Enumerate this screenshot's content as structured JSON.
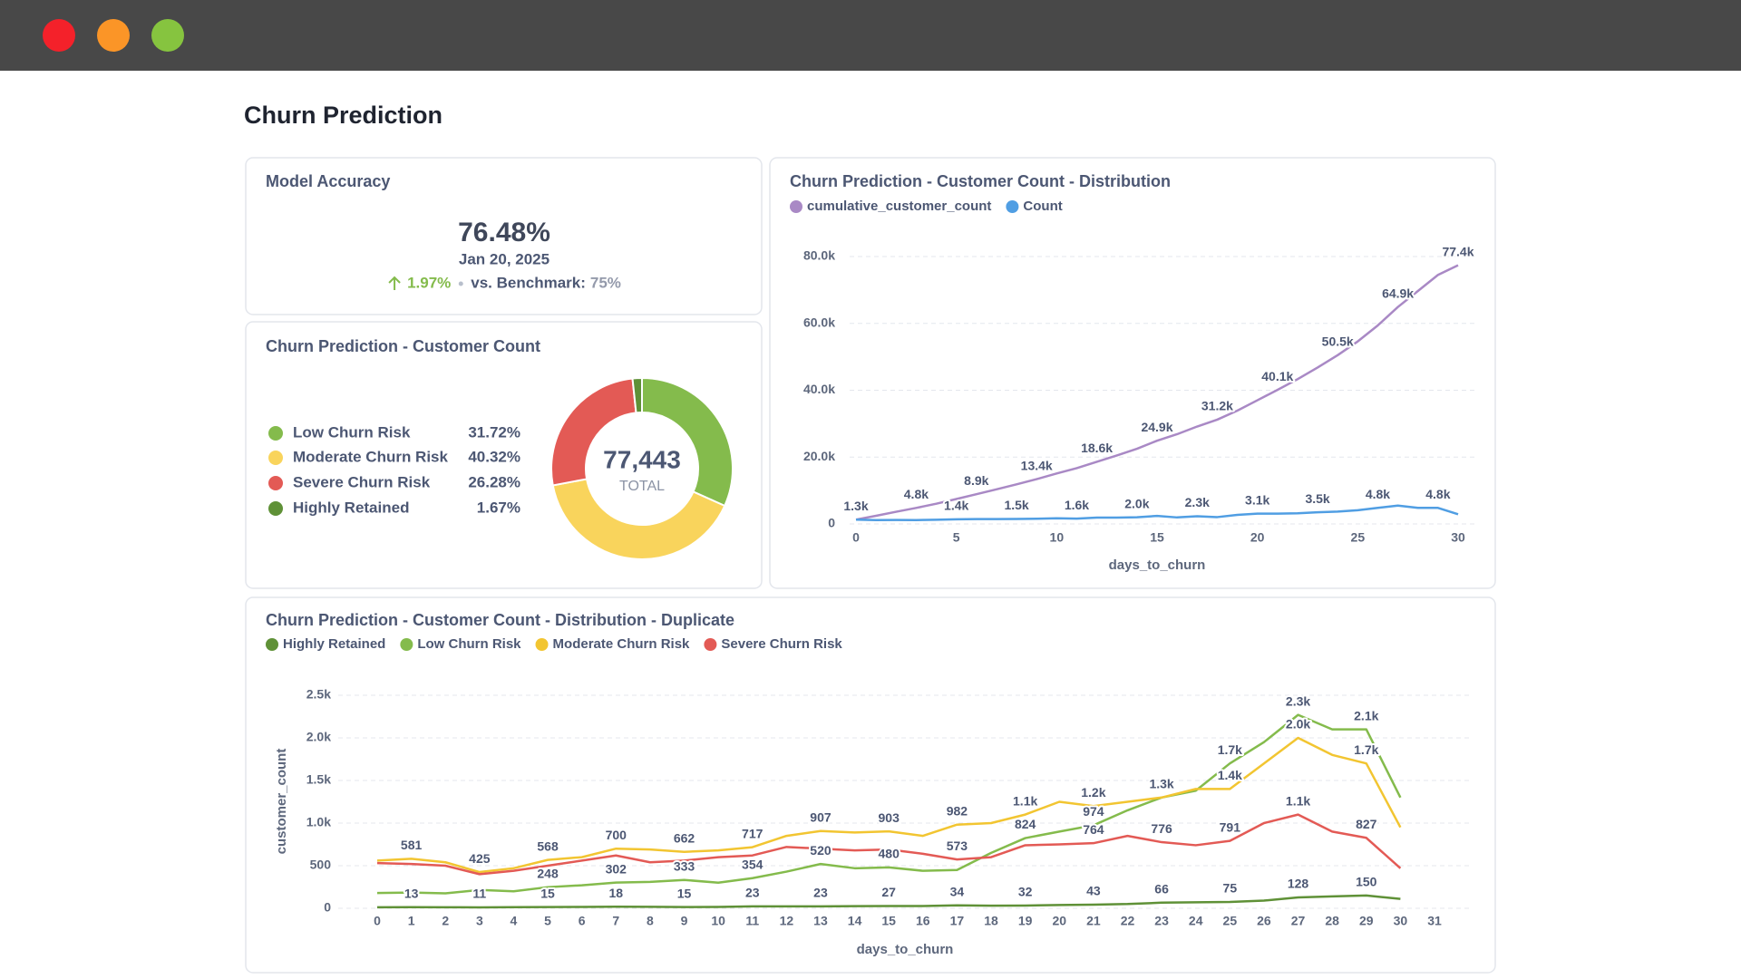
{
  "page": {
    "title": "Churn Prediction"
  },
  "kpi": {
    "title": "Model Accuracy",
    "value": "76.48%",
    "date": "Jan 20, 2025",
    "change": "1.97%",
    "comparison_label": "vs. Benchmark:",
    "benchmark": "75%"
  },
  "chart_data": [
    {
      "type": "pie",
      "title": "Churn Prediction - Customer Count",
      "categories": [
        "Low Churn Risk",
        "Moderate Churn Risk",
        "Severe Churn Risk",
        "Highly Retained"
      ],
      "values": [
        31.72,
        40.32,
        26.28,
        1.67
      ],
      "value_labels": [
        "31.72%",
        "40.32%",
        "26.28%",
        "1.67%"
      ],
      "colors": [
        "#84bb4c",
        "#f9d45c",
        "#e35a55",
        "#5f9137"
      ],
      "total": "77,443",
      "total_label": "TOTAL"
    },
    {
      "type": "line",
      "title": "Churn Prediction - Customer Count - Distribution",
      "x": [
        0,
        1,
        2,
        3,
        4,
        5,
        6,
        7,
        8,
        9,
        10,
        11,
        12,
        13,
        14,
        15,
        16,
        17,
        18,
        19,
        20,
        21,
        22,
        23,
        24,
        25,
        26,
        27,
        28,
        29,
        30
      ],
      "xlim": [
        0,
        30
      ],
      "xticks": [
        0,
        5,
        10,
        15,
        20,
        25,
        30
      ],
      "ylim": [
        0,
        80000
      ],
      "yticks": [
        0,
        {
          "value": 20000,
          "label": "20.0k"
        },
        {
          "value": 40000,
          "label": "40.0k"
        },
        {
          "value": 60000,
          "label": "60.0k"
        },
        {
          "value": 80000,
          "label": "80.0k"
        }
      ],
      "x_label": "days_to_churn",
      "grid": true,
      "series": [
        {
          "name": "cumulative_customer_count",
          "color": "#a989c5",
          "values": [
            1300,
            2450,
            3650,
            4800,
            6050,
            7450,
            8900,
            10350,
            11850,
            13400,
            15100,
            16700,
            18600,
            20500,
            22500,
            24900,
            26850,
            29150,
            31200,
            33900,
            37000,
            40100,
            43300,
            46800,
            50500,
            54600,
            59400,
            64900,
            69700,
            74500,
            77400
          ],
          "value_labels": [
            "1.3k",
            null,
            null,
            "4.8k",
            null,
            null,
            "8.9k",
            null,
            null,
            "13.4k",
            null,
            null,
            "18.6k",
            null,
            null,
            "24.9k",
            null,
            null,
            "31.2k",
            null,
            null,
            "40.1k",
            null,
            null,
            "50.5k",
            null,
            null,
            "64.9k",
            null,
            null,
            "77.4k"
          ]
        },
        {
          "name": "Count",
          "color": "#509ee3",
          "values": [
            1300,
            1150,
            1200,
            1150,
            1250,
            1400,
            1450,
            1450,
            1500,
            1550,
            1700,
            1600,
            1900,
            1900,
            2000,
            2400,
            1950,
            2300,
            2050,
            2700,
            3100,
            3100,
            3200,
            3500,
            3700,
            4100,
            4800,
            5500,
            4800,
            4800,
            2900
          ],
          "value_labels": [
            null,
            null,
            null,
            null,
            null,
            "1.4k",
            null,
            null,
            "1.5k",
            null,
            null,
            "1.6k",
            null,
            null,
            "2.0k",
            null,
            null,
            "2.3k",
            null,
            null,
            "3.1k",
            null,
            null,
            "3.5k",
            null,
            null,
            "4.8k",
            null,
            null,
            "4.8k",
            null
          ]
        }
      ]
    },
    {
      "type": "line",
      "title": "Churn Prediction - Customer Count - Distribution - Duplicate",
      "x": [
        0,
        1,
        2,
        3,
        4,
        5,
        6,
        7,
        8,
        9,
        10,
        11,
        12,
        13,
        14,
        15,
        16,
        17,
        18,
        19,
        20,
        21,
        22,
        23,
        24,
        25,
        26,
        27,
        28,
        29,
        30
      ],
      "xlim": [
        0,
        31
      ],
      "xticks": [
        0,
        1,
        2,
        3,
        4,
        5,
        6,
        7,
        8,
        9,
        10,
        11,
        12,
        13,
        14,
        15,
        16,
        17,
        18,
        19,
        20,
        21,
        22,
        23,
        24,
        25,
        26,
        27,
        28,
        29,
        30,
        31
      ],
      "ylim": [
        0,
        2500
      ],
      "yticks": [
        0,
        500,
        {
          "value": 1000,
          "label": "1.0k"
        },
        {
          "value": 1500,
          "label": "1.5k"
        },
        {
          "value": 2000,
          "label": "2.0k"
        },
        {
          "value": 2500,
          "label": "2.5k"
        }
      ],
      "x_label": "days_to_churn",
      "y_label": "customer_count",
      "grid": true,
      "series": [
        {
          "name": "Highly Retained",
          "color": "#5f9137",
          "values": [
            12,
            13,
            12,
            11,
            13,
            15,
            16,
            18,
            17,
            15,
            16,
            23,
            22,
            23,
            25,
            27,
            26,
            34,
            30,
            32,
            38,
            43,
            50,
            66,
            70,
            75,
            90,
            128,
            140,
            150,
            110
          ],
          "value_labels": [
            null,
            "13",
            null,
            "11",
            null,
            "15",
            null,
            "18",
            null,
            "15",
            null,
            "23",
            null,
            "23",
            null,
            "27",
            null,
            "34",
            null,
            "32",
            null,
            "43",
            null,
            "66",
            null,
            "75",
            null,
            "128",
            null,
            "150",
            null
          ]
        },
        {
          "name": "Low Churn Risk",
          "color": "#84bb4c",
          "values": [
            180,
            185,
            175,
            215,
            200,
            248,
            270,
            302,
            310,
            333,
            300,
            354,
            430,
            520,
            470,
            480,
            440,
            450,
            650,
            824,
            900,
            974,
            1150,
            1300,
            1380,
            1700,
            1950,
            2270,
            2100,
            2100,
            1300
          ],
          "value_labels": [
            null,
            null,
            null,
            null,
            null,
            "248",
            null,
            "302",
            null,
            "333",
            null,
            "354",
            null,
            "520",
            null,
            "480",
            null,
            null,
            null,
            "824",
            null,
            "974",
            null,
            null,
            null,
            "1.7k",
            null,
            "2.3k",
            null,
            "2.1k",
            null
          ]
        },
        {
          "name": "Moderate Churn Risk",
          "color": "#f2c531",
          "values": [
            560,
            581,
            540,
            425,
            470,
            568,
            600,
            700,
            690,
            662,
            680,
            717,
            850,
            907,
            890,
            903,
            850,
            982,
            1000,
            1100,
            1250,
            1200,
            1250,
            1300,
            1400,
            1400,
            1700,
            2000,
            1800,
            1700,
            950
          ],
          "value_labels": [
            null,
            "581",
            null,
            "425",
            null,
            "568",
            null,
            "700",
            null,
            "662",
            null,
            "717",
            null,
            "907",
            null,
            "903",
            null,
            "982",
            null,
            "1.1k",
            null,
            "1.2k",
            null,
            "1.3k",
            null,
            "1.4k",
            null,
            "2.0k",
            null,
            "1.7k",
            null
          ]
        },
        {
          "name": "Severe Churn Risk",
          "color": "#e35a55",
          "values": [
            530,
            520,
            500,
            400,
            440,
            500,
            560,
            620,
            540,
            560,
            600,
            620,
            720,
            700,
            680,
            690,
            640,
            573,
            600,
            740,
            750,
            764,
            850,
            776,
            740,
            791,
            1000,
            1100,
            900,
            827,
            470
          ],
          "value_labels": [
            null,
            null,
            null,
            null,
            null,
            null,
            null,
            null,
            null,
            null,
            null,
            null,
            null,
            null,
            null,
            null,
            null,
            "573",
            null,
            null,
            null,
            "764",
            null,
            "776",
            null,
            "791",
            null,
            "1.1k",
            null,
            "827",
            null
          ]
        }
      ]
    }
  ]
}
